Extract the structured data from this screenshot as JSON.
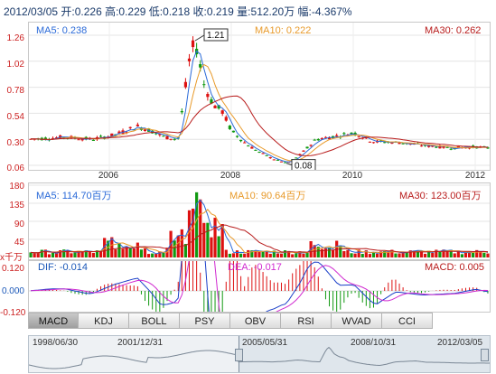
{
  "quote_bar": "2012/03/05  开:0.226 高:0.229 低:0.218 收:0.219 量:512.20万 幅:-4.367%",
  "colors": {
    "up": "#dd1111",
    "down": "#119911",
    "ma5": "#2a6ad8",
    "ma10": "#e89a2a",
    "ma30": "#b81b1b",
    "price_label": "#1a57b8"
  },
  "price_panel": {
    "ma5": "MA5: 0.238",
    "ma10": "MA10: 0.222",
    "ma30": "MA30: 0.262",
    "y_ticks": [
      "1.26",
      "1.02",
      "0.78",
      "0.54",
      "0.30",
      "0.06"
    ],
    "high_label": "1.21",
    "low_label": "0.08",
    "x_ticks": [
      "2006",
      "2008",
      "2010",
      "2012"
    ]
  },
  "volume_panel": {
    "ma5": "MA5: 114.70百万",
    "ma10": "MA10: 90.64百万",
    "ma30": "MA30: 123.00百万",
    "y_ticks": [
      "180",
      "135",
      "90",
      "45"
    ],
    "unit": "x千万"
  },
  "macd_panel": {
    "dif": "DIF: -0.014",
    "dea": "DEA: -0.017",
    "macd": "MACD: 0.005",
    "y_ticks": [
      "0.120",
      "0.000",
      "-0.120"
    ]
  },
  "indicator_tabs": [
    {
      "label": "MACD",
      "active": true
    },
    {
      "label": "KDJ",
      "active": false
    },
    {
      "label": "BOLL",
      "active": false
    },
    {
      "label": "PSY",
      "active": false
    },
    {
      "label": "OBV",
      "active": false
    },
    {
      "label": "RSI",
      "active": false
    },
    {
      "label": "WVAD",
      "active": false
    },
    {
      "label": "CCI",
      "active": false
    }
  ],
  "navigator": {
    "labels": [
      "1998/06/30",
      "2001/12/31",
      "2005/05/31",
      "2008/10/31",
      "2012/03/05"
    ]
  }
}
